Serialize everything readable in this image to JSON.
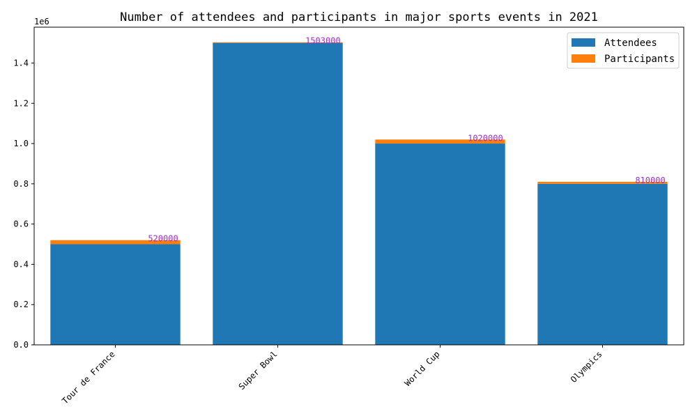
{
  "chart_data": {
    "type": "bar",
    "stacked": true,
    "title": "Number of attendees and participants in major sports events in 2021",
    "xlabel": "",
    "ylabel": "",
    "y_offset_label": "1e6",
    "categories": [
      "Tour de France",
      "Super Bowl",
      "World Cup",
      "Olympics"
    ],
    "series": [
      {
        "name": "Attendees",
        "values": [
          500000,
          1500000,
          1000000,
          800000
        ],
        "color": "#1f77b4"
      },
      {
        "name": "Participants",
        "values": [
          20000,
          3000,
          20000,
          10000
        ],
        "color": "#ff7f0e"
      }
    ],
    "totals": [
      520000,
      1503000,
      1020000,
      810000
    ],
    "total_label_color": "#9b30d0",
    "ylim": [
      0,
      1578150
    ],
    "yticks": [
      0,
      200000,
      400000,
      600000,
      800000,
      1000000,
      1200000,
      1400000
    ],
    "ytick_labels": [
      "0.0",
      "0.2",
      "0.4",
      "0.6",
      "0.8",
      "1.0",
      "1.2",
      "1.4"
    ],
    "legend_position": "top-right",
    "grid": false
  }
}
